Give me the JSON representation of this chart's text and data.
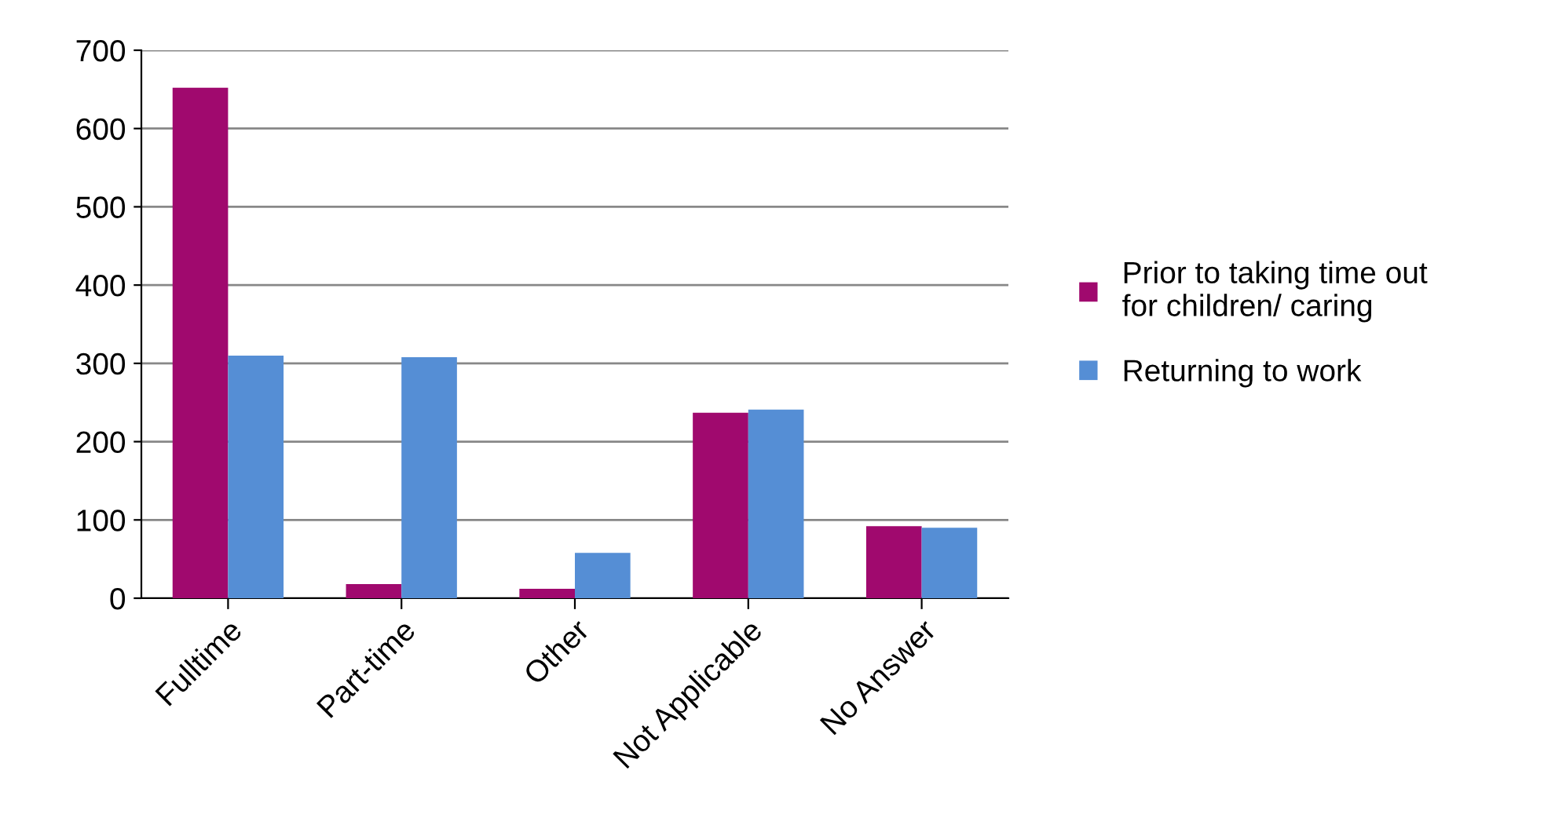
{
  "chart_data": {
    "type": "bar",
    "categories": [
      "Fulltime",
      "Part-time",
      "Other",
      "Not Applicable",
      "No Answer"
    ],
    "series": [
      {
        "name": "Prior to taking time out\nfor children/ caring",
        "color": "#a0096e",
        "values": [
          652,
          18,
          12,
          237,
          92
        ]
      },
      {
        "name": "Returning to work",
        "color": "#558ed5",
        "values": [
          310,
          308,
          58,
          241,
          90
        ]
      }
    ],
    "ylim": [
      0,
      700
    ],
    "yticks": [
      0,
      100,
      200,
      300,
      400,
      500,
      600,
      700
    ],
    "grid": "y",
    "legend": "right"
  }
}
